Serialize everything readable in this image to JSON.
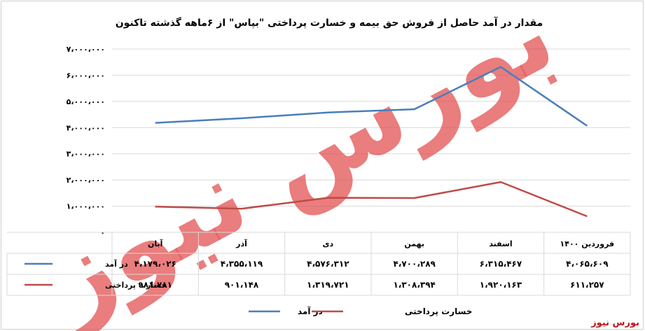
{
  "chart_data": {
    "type": "line",
    "title": "مقدار در آمد حاصل از فروش حق بیمه و خسارت پرداختی \"بپاس\" از ۶ماهه گذشته تاکنون",
    "categories": [
      "آبان",
      "آذر",
      "دی",
      "بهمن",
      "اسفند",
      "فروردین ۱۴۰۰"
    ],
    "y_ticks": [
      "۰",
      "۱،۰۰۰،۰۰۰",
      "۲،۰۰۰،۰۰۰",
      "۳،۰۰۰،۰۰۰",
      "۴،۰۰۰،۰۰۰",
      "۵،۰۰۰،۰۰۰",
      "۶،۰۰۰،۰۰۰",
      "۷،۰۰۰،۰۰۰"
    ],
    "ylim": [
      0,
      7000000
    ],
    "grid": true,
    "legend_position": "bottom",
    "series": [
      {
        "name": "در آمد",
        "color": "#4a7ebb",
        "values": [
          4179026,
          4355119,
          4576312,
          4700289,
          6315467,
          4065609
        ],
        "labels": [
          "۴،۱۷۹،۰۲۶",
          "۴،۳۵۵،۱۱۹",
          "۴،۵۷۶،۳۱۲",
          "۴،۷۰۰،۲۸۹",
          "۶،۳۱۵،۴۶۷",
          "۴،۰۶۵،۶۰۹"
        ]
      },
      {
        "name": "خسارت پرداختی",
        "color": "#be4b48",
        "values": [
          981781,
          901148,
          1319721,
          1308394,
          1920163,
          611257
        ],
        "labels": [
          "۹۸۱،۷۸۱",
          "۹۰۱،۱۴۸",
          "۱،۳۱۹،۷۲۱",
          "۱،۳۰۸،۳۹۴",
          "۱،۹۲۰،۱۶۳",
          "۶۱۱،۲۵۷"
        ]
      }
    ]
  },
  "watermark": "بورس نیوز",
  "brand": "بورس نیوز"
}
